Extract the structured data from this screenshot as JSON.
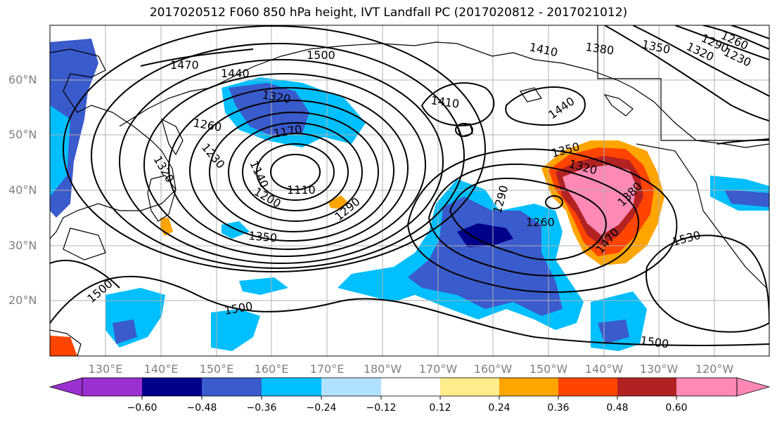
{
  "title": "2017020512 F060 850 hPa height, IVT Landfall PC (2017020812 - 2017021012)",
  "lat_labels": [
    "60°N",
    "50°N",
    "40°N",
    "30°N",
    "20°N"
  ],
  "lon_labels": [
    "130°E",
    "140°E",
    "150°E",
    "160°E",
    "170°E",
    "180°W",
    "170°W",
    "160°W",
    "150°W",
    "140°W",
    "130°W",
    "120°W"
  ],
  "contour_labels": [
    "1500",
    "1470",
    "1440",
    "1410",
    "1380",
    "1350",
    "1320",
    "1290",
    "1260",
    "1230",
    "1200",
    "1170",
    "1140",
    "1110",
    "1530"
  ],
  "colorbar": {
    "ticks": [
      "−0.60",
      "−0.48",
      "−0.36",
      "−0.24",
      "−0.12",
      "0.12",
      "0.24",
      "0.36",
      "0.48",
      "0.60"
    ],
    "colors": [
      "#9b30d0",
      "#00008b",
      "#3a5bcc",
      "#00bfff",
      "#b0e2ff",
      "#ffffff",
      "#ffec8b",
      "#ffa500",
      "#ff4500",
      "#b22222",
      "#ff89b4"
    ]
  }
}
